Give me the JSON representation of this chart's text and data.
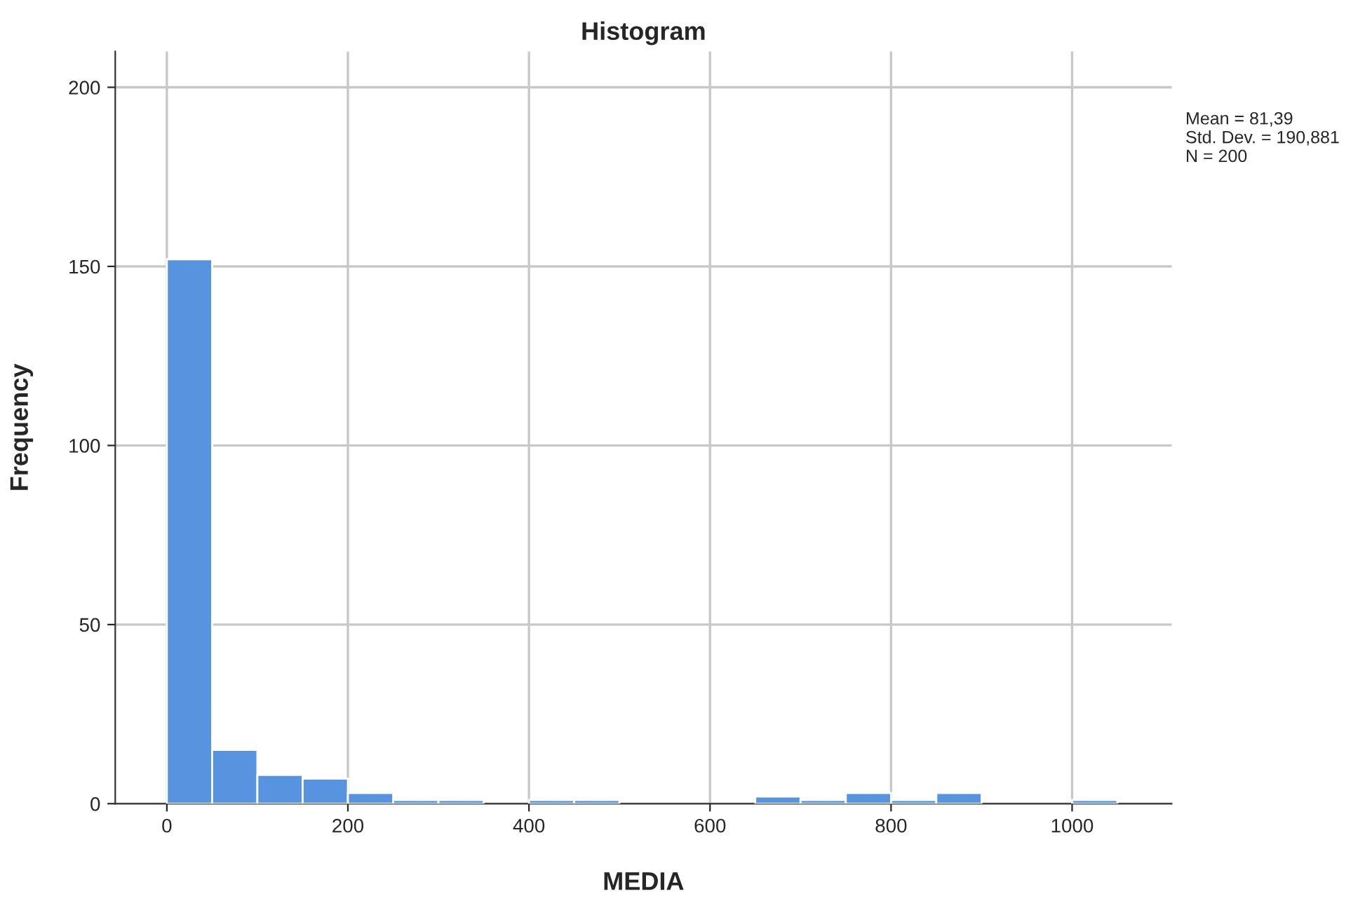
{
  "chart_data": {
    "type": "histogram",
    "title": "Histogram",
    "xlabel": "MEDIA",
    "ylabel": "Frequency",
    "bins": [
      0,
      50,
      100,
      150,
      200,
      250,
      300,
      350,
      400,
      450,
      500,
      550,
      600,
      650,
      700,
      750,
      800,
      850,
      900,
      950,
      1000,
      1050
    ],
    "values": [
      152,
      15,
      8,
      7,
      3,
      1,
      1,
      0,
      1,
      1,
      0,
      0,
      0,
      2,
      1,
      3,
      1,
      3,
      0,
      0,
      1
    ],
    "color": "#5893e0",
    "xlim": [
      -57,
      1110
    ],
    "xticks": [
      0,
      200,
      400,
      600,
      800,
      1000
    ],
    "ylim": [
      0,
      210
    ],
    "yticks": [
      0,
      50,
      100,
      150,
      200
    ],
    "grid": true,
    "annotations": [
      "Mean = 81,39",
      "Std. Dev. = 190,881",
      "N = 200"
    ]
  }
}
